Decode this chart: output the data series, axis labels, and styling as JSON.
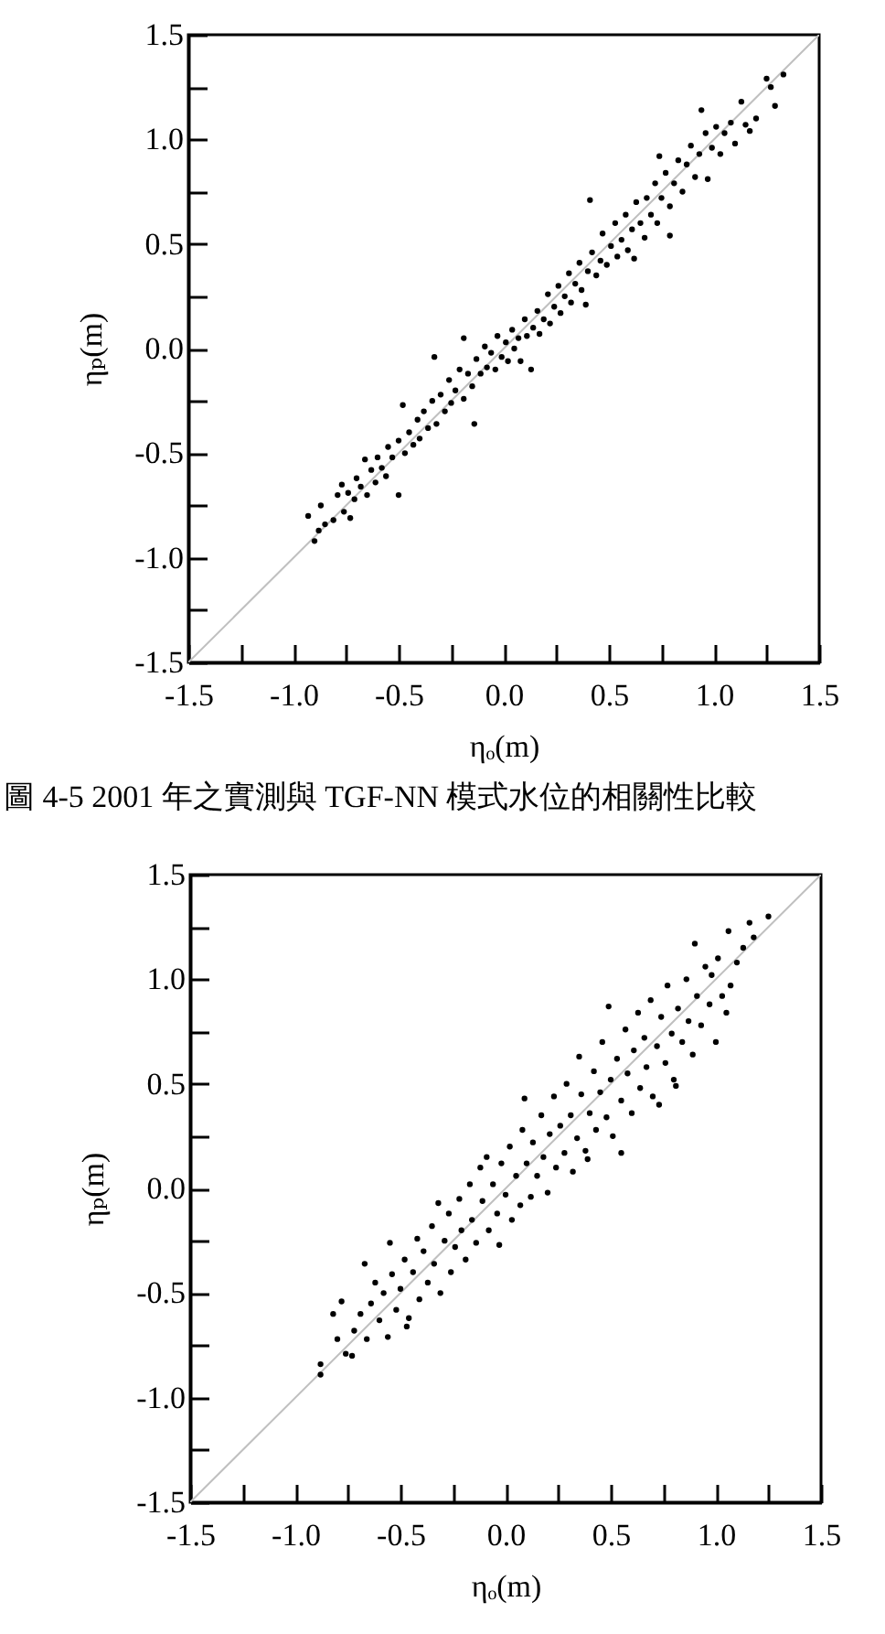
{
  "chart_data": [
    {
      "type": "scatter",
      "xlabel": "ηₒ(m)",
      "ylabel": "ηₚ(m)",
      "xlim": [
        -1.5,
        1.5
      ],
      "ylim": [
        -1.5,
        1.5
      ],
      "xticks": [
        -1.5,
        {
          "value": -1.25,
          "label": null
        },
        {
          "value": -1,
          "label": "-1.0"
        },
        {
          "value": -0.75,
          "label": null
        },
        -0.5,
        {
          "value": -0.25,
          "label": null
        },
        {
          "value": 0,
          "label": "0.0"
        },
        {
          "value": 0.25,
          "label": null
        },
        0.5,
        {
          "value": 0.75,
          "label": null
        },
        {
          "value": 1,
          "label": "1.0"
        },
        {
          "value": 1.25,
          "label": null
        },
        1.5
      ],
      "yticks": [
        -1.5,
        {
          "value": -1.25,
          "label": null
        },
        {
          "value": -1,
          "label": "-1.0"
        },
        {
          "value": -0.75,
          "label": null
        },
        -0.5,
        {
          "value": -0.25,
          "label": null
        },
        {
          "value": 0,
          "label": "0.0"
        },
        {
          "value": 0.25,
          "label": null
        },
        0.5,
        {
          "value": 0.75,
          "label": null
        },
        {
          "value": 1,
          "label": "1.0"
        },
        {
          "value": 1.25,
          "label": null
        },
        1.5
      ],
      "annotations": [
        "圖 4-5 2001 年之實測與 TGF-NN 模式水位的相關性比較"
      ],
      "series": [
        {
          "type": "line",
          "color": "#c0c0c0",
          "x": [
            -1.5,
            1.5
          ],
          "values": [
            -1.5,
            1.5
          ]
        },
        {
          "type": "scatter",
          "color": "#000000",
          "marker": "circle",
          "x": [
            -0.93,
            -0.9,
            -0.88,
            -0.87,
            -0.85,
            -0.81,
            -0.79,
            -0.77,
            -0.76,
            -0.74,
            -0.73,
            -0.71,
            -0.7,
            -0.68,
            -0.66,
            -0.65,
            -0.63,
            -0.61,
            -0.6,
            -0.58,
            -0.56,
            -0.55,
            -0.53,
            -0.5,
            -0.5,
            -0.48,
            -0.47,
            -0.45,
            -0.43,
            -0.41,
            -0.4,
            -0.38,
            -0.36,
            -0.34,
            -0.33,
            -0.32,
            -0.3,
            -0.28,
            -0.26,
            -0.25,
            -0.23,
            -0.21,
            -0.19,
            -0.19,
            -0.17,
            -0.15,
            -0.14,
            -0.13,
            -0.11,
            -0.09,
            -0.08,
            -0.06,
            -0.04,
            -0.03,
            -0.01,
            0.01,
            0.02,
            0.04,
            0.05,
            0.07,
            0.08,
            0.1,
            0.11,
            0.13,
            0.14,
            0.16,
            0.17,
            0.19,
            0.21,
            0.22,
            0.24,
            0.26,
            0.27,
            0.29,
            0.31,
            0.32,
            0.34,
            0.36,
            0.37,
            0.39,
            0.4,
            0.41,
            0.42,
            0.44,
            0.46,
            0.47,
            0.49,
            0.51,
            0.53,
            0.54,
            0.56,
            0.58,
            0.59,
            0.61,
            0.62,
            0.63,
            0.65,
            0.67,
            0.68,
            0.7,
            0.72,
            0.73,
            0.74,
            0.75,
            0.77,
            0.79,
            0.79,
            0.81,
            0.83,
            0.85,
            0.87,
            0.89,
            0.91,
            0.93,
            0.94,
            0.96,
            0.97,
            0.99,
            1.01,
            1.03,
            1.05,
            1.08,
            1.1,
            1.13,
            1.15,
            1.17,
            1.2,
            1.25,
            1.27,
            1.29,
            1.33
          ],
          "values": [
            -0.8,
            -0.92,
            -0.87,
            -0.75,
            -0.84,
            -0.82,
            -0.7,
            -0.65,
            -0.78,
            -0.69,
            -0.81,
            -0.72,
            -0.62,
            -0.66,
            -0.53,
            -0.7,
            -0.58,
            -0.64,
            -0.52,
            -0.57,
            -0.61,
            -0.47,
            -0.52,
            -0.7,
            -0.44,
            -0.27,
            -0.5,
            -0.4,
            -0.46,
            -0.34,
            -0.43,
            -0.3,
            -0.38,
            -0.25,
            -0.04,
            -0.36,
            -0.22,
            -0.3,
            -0.15,
            -0.26,
            -0.2,
            -0.1,
            0.05,
            -0.24,
            -0.12,
            -0.18,
            -0.36,
            -0.05,
            -0.12,
            0.01,
            -0.09,
            -0.02,
            -0.1,
            0.06,
            -0.04,
            0.03,
            -0.06,
            0.09,
            0,
            0.05,
            -0.06,
            0.14,
            0.06,
            -0.1,
            0.1,
            0.18,
            0.07,
            0.14,
            0.26,
            0.12,
            0.2,
            0.3,
            0.17,
            0.25,
            0.36,
            0.22,
            0.31,
            0.41,
            0.28,
            0.21,
            0.37,
            0.71,
            0.46,
            0.35,
            0.42,
            0.55,
            0.4,
            0.49,
            0.6,
            0.44,
            0.52,
            0.64,
            0.47,
            0.57,
            0.43,
            0.7,
            0.6,
            0.53,
            0.72,
            0.64,
            0.79,
            0.6,
            0.92,
            0.72,
            0.84,
            0.68,
            0.54,
            0.79,
            0.9,
            0.75,
            0.88,
            0.97,
            0.82,
            0.93,
            1.14,
            1.03,
            0.81,
            0.96,
            1.06,
            0.93,
            1.03,
            1.08,
            0.98,
            1.18,
            1.07,
            1.04,
            1.1,
            1.29,
            1.25,
            1.16,
            1.31
          ]
        }
      ]
    },
    {
      "type": "scatter",
      "xlabel": "ηₒ(m)",
      "ylabel": "ηₚ(m)",
      "xlim": [
        -1.5,
        1.5
      ],
      "ylim": [
        -1.5,
        1.5
      ],
      "xticks": [
        -1.5,
        {
          "value": -1.25,
          "label": null
        },
        {
          "value": -1,
          "label": "-1.0"
        },
        {
          "value": -0.75,
          "label": null
        },
        -0.5,
        {
          "value": -0.25,
          "label": null
        },
        {
          "value": 0,
          "label": "0.0"
        },
        {
          "value": 0.25,
          "label": null
        },
        0.5,
        {
          "value": 0.75,
          "label": null
        },
        {
          "value": 1,
          "label": "1.0"
        },
        {
          "value": 1.25,
          "label": null
        },
        1.5
      ],
      "yticks": [
        -1.5,
        {
          "value": -1.25,
          "label": null
        },
        {
          "value": -1,
          "label": "-1.0"
        },
        {
          "value": -0.75,
          "label": null
        },
        -0.5,
        {
          "value": -0.25,
          "label": null
        },
        {
          "value": 0,
          "label": "0.0"
        },
        {
          "value": 0.25,
          "label": null
        },
        0.5,
        {
          "value": 0.75,
          "label": null
        },
        {
          "value": 1,
          "label": "1.0"
        },
        {
          "value": 1.25,
          "label": null
        },
        1.5
      ],
      "series": [
        {
          "type": "line",
          "color": "#c0c0c0",
          "x": [
            -1.5,
            1.5
          ],
          "values": [
            -1.5,
            1.5
          ]
        },
        {
          "type": "scatter",
          "color": "#000000",
          "marker": "circle",
          "x": [
            -0.88,
            -0.88,
            -0.82,
            -0.8,
            -0.78,
            -0.76,
            -0.73,
            -0.72,
            -0.69,
            -0.67,
            -0.66,
            -0.64,
            -0.62,
            -0.6,
            -0.58,
            -0.56,
            -0.55,
            -0.54,
            -0.52,
            -0.5,
            -0.48,
            -0.47,
            -0.46,
            -0.44,
            -0.42,
            -0.41,
            -0.39,
            -0.37,
            -0.35,
            -0.34,
            -0.32,
            -0.31,
            -0.29,
            -0.27,
            -0.26,
            -0.24,
            -0.22,
            -0.21,
            -0.19,
            -0.17,
            -0.16,
            -0.14,
            -0.12,
            -0.11,
            -0.09,
            -0.08,
            -0.06,
            -0.04,
            -0.03,
            -0.02,
            0,
            0.02,
            0.03,
            0.05,
            0.07,
            0.08,
            0.09,
            0.1,
            0.12,
            0.13,
            0.15,
            0.17,
            0.18,
            0.2,
            0.21,
            0.23,
            0.24,
            0.26,
            0.28,
            0.29,
            0.31,
            0.32,
            0.34,
            0.35,
            0.36,
            0.38,
            0.39,
            0.4,
            0.42,
            0.43,
            0.45,
            0.46,
            0.48,
            0.49,
            0.5,
            0.51,
            0.53,
            0.55,
            0.55,
            0.57,
            0.58,
            0.6,
            0.61,
            0.63,
            0.64,
            0.66,
            0.67,
            0.69,
            0.7,
            0.72,
            0.73,
            0.74,
            0.76,
            0.77,
            0.79,
            0.8,
            0.81,
            0.82,
            0.84,
            0.86,
            0.87,
            0.89,
            0.9,
            0.91,
            0.93,
            0.95,
            0.97,
            0.98,
            1,
            1.01,
            1.03,
            1.05,
            1.06,
            1.07,
            1.1,
            1.13,
            1.16,
            1.18,
            1.25
          ],
          "values": [
            -0.89,
            -0.84,
            -0.6,
            -0.72,
            -0.54,
            -0.79,
            -0.8,
            -0.68,
            -0.6,
            -0.36,
            -0.72,
            -0.55,
            -0.45,
            -0.63,
            -0.5,
            -0.71,
            -0.26,
            -0.41,
            -0.58,
            -0.48,
            -0.34,
            -0.66,
            -0.62,
            -0.4,
            -0.24,
            -0.53,
            -0.3,
            -0.45,
            -0.18,
            -0.36,
            -0.07,
            -0.5,
            -0.25,
            -0.12,
            -0.4,
            -0.28,
            -0.05,
            -0.2,
            -0.34,
            0.02,
            -0.15,
            -0.26,
            0.1,
            -0.06,
            0.15,
            -0.2,
            0.02,
            -0.12,
            -0.27,
            0.12,
            -0.03,
            0.2,
            -0.15,
            0.06,
            -0.08,
            0.28,
            0.43,
            0.12,
            -0.04,
            0.22,
            0.06,
            0.35,
            0.15,
            -0.02,
            0.26,
            0.44,
            0.1,
            0.3,
            0.17,
            0.5,
            0.35,
            0.08,
            0.24,
            0.63,
            0.45,
            0.18,
            0.14,
            0.36,
            0.56,
            0.28,
            0.46,
            0.7,
            0.34,
            0.87,
            0.52,
            0.25,
            0.62,
            0.17,
            0.42,
            0.76,
            0.55,
            0.36,
            0.66,
            0.84,
            0.48,
            0.72,
            0.58,
            0.9,
            0.44,
            0.68,
            0.4,
            0.82,
            0.6,
            0.97,
            0.74,
            0.52,
            0.49,
            0.86,
            0.7,
            1,
            0.8,
            0.64,
            1.17,
            0.92,
            0.78,
            1.06,
            0.88,
            1.02,
            0.7,
            1.1,
            0.92,
            0.84,
            1.23,
            0.97,
            1.08,
            1.15,
            1.27,
            1.2,
            1.3
          ]
        }
      ]
    }
  ]
}
